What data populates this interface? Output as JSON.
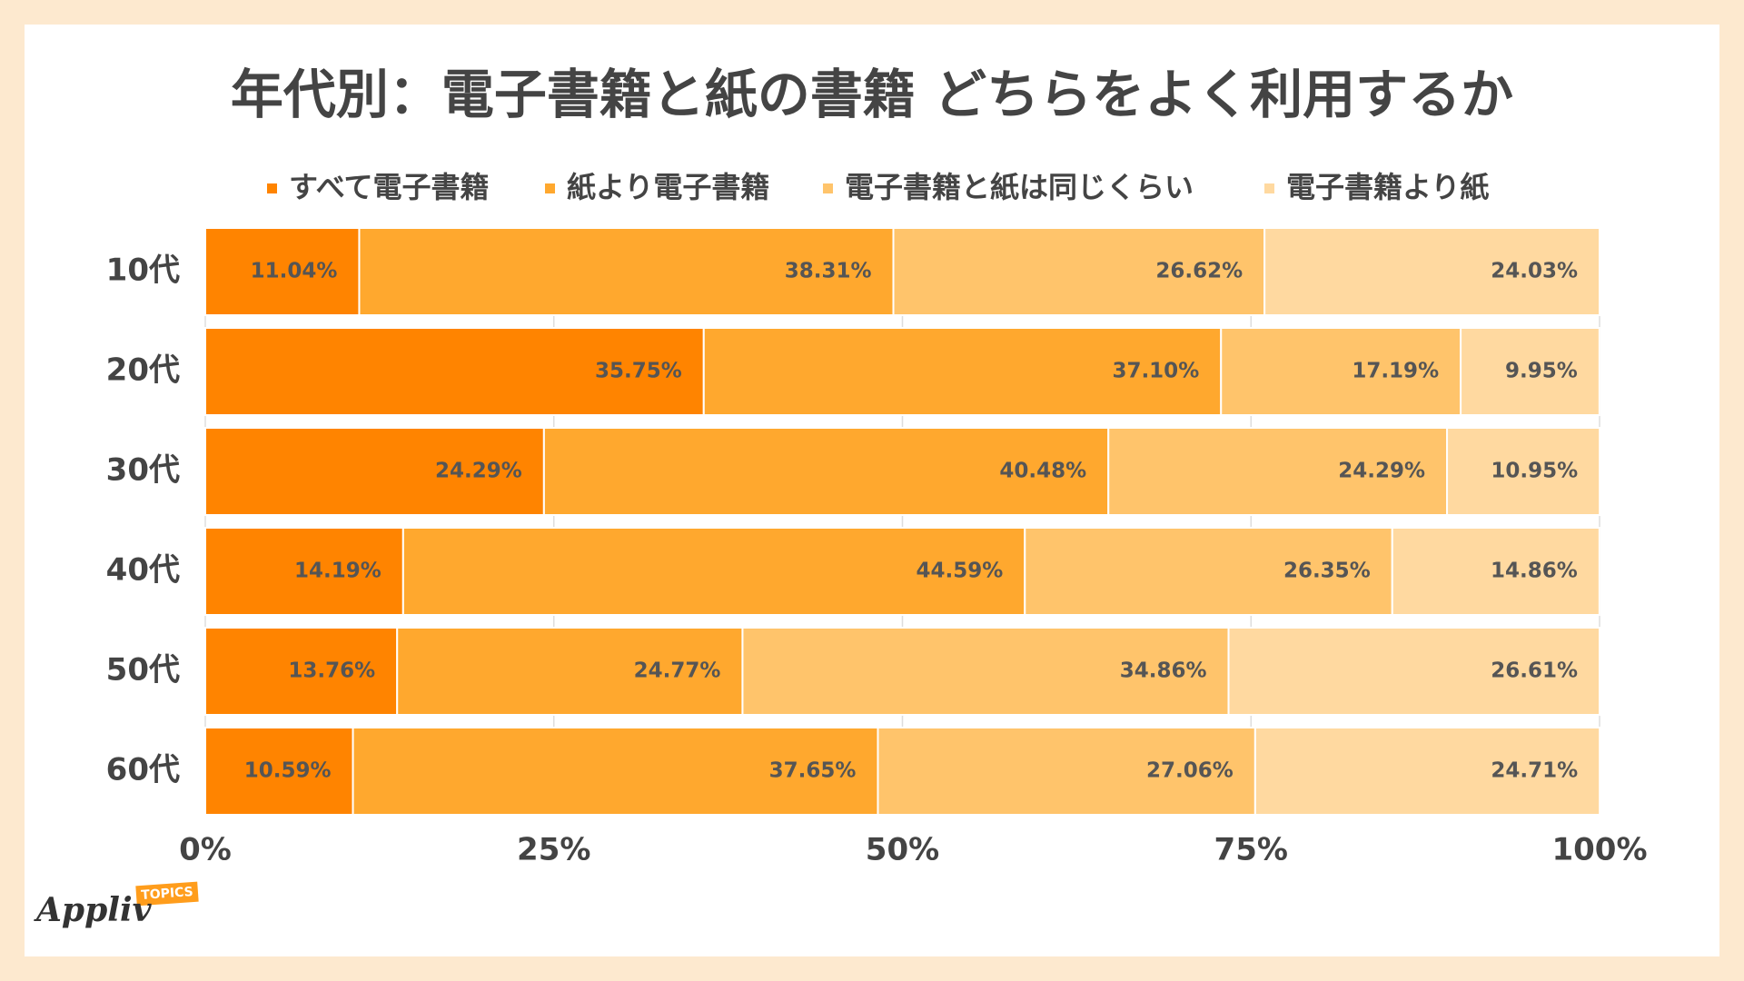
{
  "chart_data": {
    "type": "stacked-bar-horizontal",
    "title": "年代別：電子書籍と紙の書籍 どちらをよく利用するか",
    "categories": [
      "10代",
      "20代",
      "30代",
      "40代",
      "50代",
      "60代"
    ],
    "series": [
      {
        "name": "すべて電子書籍",
        "color": "#ff8400",
        "values": [
          11.04,
          35.75,
          24.29,
          14.19,
          13.76,
          10.59
        ],
        "value_labels": [
          "11.04%",
          "35.75%",
          "24.29%",
          "14.19%",
          "13.76%",
          "10.59%"
        ]
      },
      {
        "name": "紙より電子書籍",
        "color": "#ffa82e",
        "values": [
          38.31,
          37.1,
          40.48,
          44.59,
          24.77,
          37.65
        ],
        "value_labels": [
          "38.31%",
          "37.10%",
          "40.48%",
          "44.59%",
          "24.77%",
          "37.65%"
        ]
      },
      {
        "name": "電子書籍と紙は同じくらい",
        "color": "#ffc46b",
        "values": [
          26.62,
          17.19,
          24.29,
          26.35,
          34.86,
          27.06
        ],
        "value_labels": [
          "26.62%",
          "17.19%",
          "24.29%",
          "26.35%",
          "34.86%",
          "27.06%"
        ]
      },
      {
        "name": "電子書籍より紙",
        "color": "#ffd9a0",
        "values": [
          24.03,
          9.95,
          10.95,
          14.86,
          26.61,
          24.71
        ],
        "value_labels": [
          "24.03%",
          "9.95%",
          "10.95%",
          "14.86%",
          "26.61%",
          "24.71%"
        ]
      }
    ],
    "xlim": [
      0,
      100
    ],
    "xticks": [
      {
        "value": 0,
        "label": "0%"
      },
      {
        "value": 25,
        "label": "25%"
      },
      {
        "value": 50,
        "label": "50%"
      },
      {
        "value": 75,
        "label": "75%"
      },
      {
        "value": 100,
        "label": "100%"
      }
    ],
    "grid": true,
    "legend": "top"
  },
  "logo": {
    "name": "Appliv",
    "badge": "TOPICS"
  }
}
